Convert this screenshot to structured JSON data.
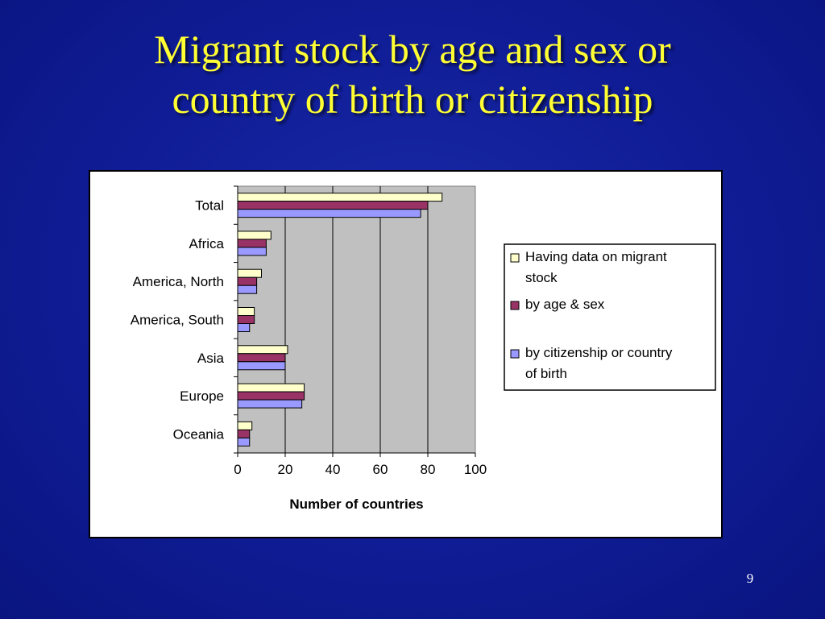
{
  "slide": {
    "title_line1": "Migrant stock by age and sex or",
    "title_line2": "country of birth or citizenship",
    "page_number": "9"
  },
  "colors": {
    "background": "#0f1c95",
    "title": "#ffff33",
    "plot_area": "#c0c0c0"
  },
  "chart_data": {
    "type": "bar",
    "orientation": "horizontal",
    "categories": [
      "Total",
      "Africa",
      "America, North",
      "America, South",
      "Asia",
      "Europe",
      "Oceania"
    ],
    "series": [
      {
        "name": "Having data on migrant stock",
        "color": "#ffffcc",
        "values": [
          86,
          14,
          10,
          7,
          21,
          28,
          6
        ]
      },
      {
        "name": "by age & sex",
        "color": "#993366",
        "values": [
          80,
          12,
          8,
          7,
          20,
          28,
          5
        ]
      },
      {
        "name": "by citizenship or country of birth",
        "color": "#9999ff",
        "values": [
          77,
          12,
          8,
          5,
          20,
          27,
          5
        ]
      }
    ],
    "xlabel": "Number of countries",
    "ylabel": "",
    "xlim": [
      0,
      100
    ],
    "xticks": [
      "0",
      "20",
      "40",
      "60",
      "80",
      "100"
    ],
    "grid": "vertical",
    "legend_placement": "right"
  }
}
